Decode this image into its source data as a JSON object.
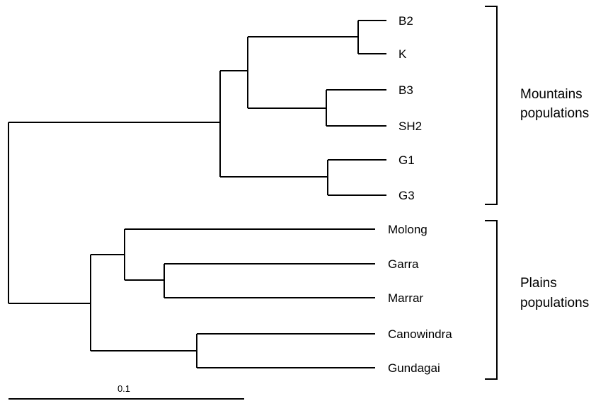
{
  "tree": {
    "leaves": [
      {
        "id": "B2",
        "label": "B2"
      },
      {
        "id": "K",
        "label": "K"
      },
      {
        "id": "B3",
        "label": "B3"
      },
      {
        "id": "SH2",
        "label": "SH2"
      },
      {
        "id": "G1",
        "label": "G1"
      },
      {
        "id": "G3",
        "label": "G3"
      },
      {
        "id": "Molong",
        "label": "Molong"
      },
      {
        "id": "Garra",
        "label": "Garra"
      },
      {
        "id": "Marrar",
        "label": "Marrar"
      },
      {
        "id": "Canowindra",
        "label": "Canowindra"
      },
      {
        "id": "Gundagai",
        "label": "Gundagai"
      }
    ],
    "groups": [
      {
        "name": "mountains",
        "label_line1": "Mountains",
        "label_line2": "populations"
      },
      {
        "name": "plains",
        "label_line1": "Plains",
        "label_line2": "populations"
      }
    ],
    "scale_bar": {
      "label": "0.1"
    }
  }
}
